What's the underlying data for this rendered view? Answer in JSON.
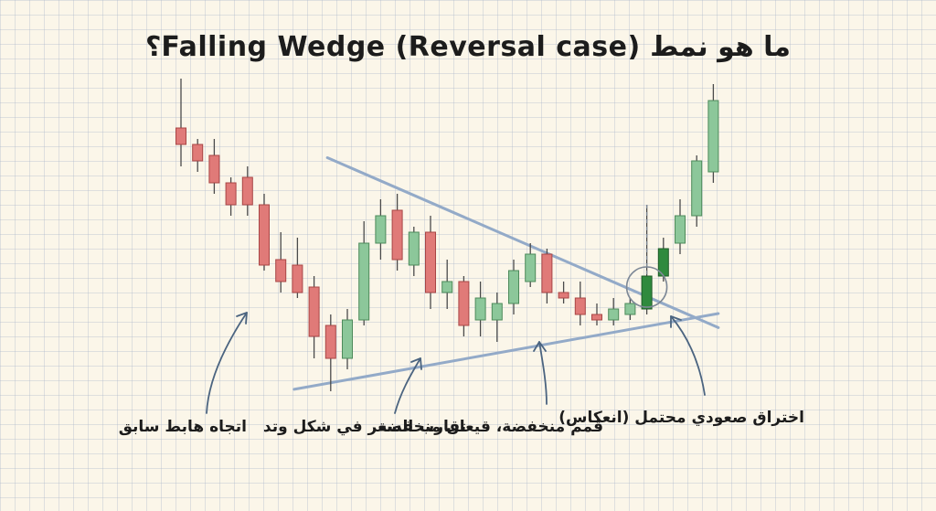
{
  "title": "ما هو نمط Falling Wedge (Reversal case)؟",
  "colors": {
    "bearish": "#e07a78",
    "bearish_border": "#a84545",
    "bullish_light": "#8cc79a",
    "bullish_light_border": "#4d8a5a",
    "bullish_strong": "#2f8a3e",
    "bullish_strong_border": "#1d5a27",
    "trendline": "#93aac8",
    "arrow": "#4b6480"
  },
  "annotations": {
    "prior_downtrend": "اتجاه هابط سابق",
    "converging": "تقارب السعر في شكل وتد",
    "lower_highs_lows": "قمم منخفضة، قيعان منخفضة",
    "breakout": "اختراق صعودي محتمل (انعكاس)"
  },
  "chart_data": {
    "type": "candlestick",
    "title": "ما هو نمط Falling Wedge (Reversal case)؟",
    "xlabel": "",
    "ylabel": "",
    "axes_visible": false,
    "grid": true,
    "series": [
      {
        "o": 90,
        "h": 99,
        "l": 83,
        "c": 87,
        "k": "bear"
      },
      {
        "o": 87,
        "h": 88,
        "l": 82,
        "c": 84,
        "k": "bear"
      },
      {
        "o": 85,
        "h": 88,
        "l": 78,
        "c": 80,
        "k": "bear"
      },
      {
        "o": 80,
        "h": 81,
        "l": 74,
        "c": 76,
        "k": "bear"
      },
      {
        "o": 81,
        "h": 83,
        "l": 74,
        "c": 76,
        "k": "bear"
      },
      {
        "o": 76,
        "h": 78,
        "l": 64,
        "c": 65,
        "k": "bear"
      },
      {
        "o": 66,
        "h": 71,
        "l": 60,
        "c": 62,
        "k": "bear"
      },
      {
        "o": 65,
        "h": 70,
        "l": 59,
        "c": 60,
        "k": "bear"
      },
      {
        "o": 61,
        "h": 63,
        "l": 48,
        "c": 52,
        "k": "bear"
      },
      {
        "o": 54,
        "h": 56,
        "l": 42,
        "c": 48,
        "k": "bear"
      },
      {
        "o": 48,
        "h": 57,
        "l": 46,
        "c": 55,
        "k": "bull"
      },
      {
        "o": 55,
        "h": 73,
        "l": 54,
        "c": 69,
        "k": "bull"
      },
      {
        "o": 69,
        "h": 77,
        "l": 66,
        "c": 74,
        "k": "bull"
      },
      {
        "o": 75,
        "h": 78,
        "l": 64,
        "c": 66,
        "k": "bear"
      },
      {
        "o": 65,
        "h": 72,
        "l": 63,
        "c": 71,
        "k": "bull"
      },
      {
        "o": 71,
        "h": 74,
        "l": 57,
        "c": 60,
        "k": "bear"
      },
      {
        "o": 60,
        "h": 66,
        "l": 57,
        "c": 62,
        "k": "bull"
      },
      {
        "o": 62,
        "h": 63,
        "l": 52,
        "c": 54,
        "k": "bear"
      },
      {
        "o": 55,
        "h": 62,
        "l": 52,
        "c": 59,
        "k": "bull"
      },
      {
        "o": 55,
        "h": 60,
        "l": 51,
        "c": 58,
        "k": "bull"
      },
      {
        "o": 58,
        "h": 66,
        "l": 56,
        "c": 64,
        "k": "bull"
      },
      {
        "o": 62,
        "h": 69,
        "l": 61,
        "c": 67,
        "k": "bull"
      },
      {
        "o": 67,
        "h": 68,
        "l": 58,
        "c": 60,
        "k": "bear"
      },
      {
        "o": 60,
        "h": 62,
        "l": 58,
        "c": 59,
        "k": "bear"
      },
      {
        "o": 59,
        "h": 62,
        "l": 54,
        "c": 56,
        "k": "bear"
      },
      {
        "o": 56,
        "h": 58,
        "l": 54,
        "c": 55,
        "k": "bear"
      },
      {
        "o": 55,
        "h": 59,
        "l": 54,
        "c": 57,
        "k": "bull"
      },
      {
        "o": 56,
        "h": 59,
        "l": 55,
        "c": 58,
        "k": "bull"
      },
      {
        "o": 57,
        "h": 76,
        "l": 56,
        "c": 63,
        "k": "bull_strong"
      },
      {
        "o": 63,
        "h": 70,
        "l": 62,
        "c": 68,
        "k": "bull_strong"
      },
      {
        "o": 69,
        "h": 77,
        "l": 67,
        "c": 74,
        "k": "bull"
      },
      {
        "o": 74,
        "h": 85,
        "l": 72,
        "c": 84,
        "k": "bull"
      },
      {
        "o": 82,
        "h": 98,
        "l": 80,
        "c": 95,
        "k": "bull"
      }
    ],
    "trendlines": [
      {
        "name": "upper",
        "from": {
          "i": 10,
          "v": 83
        },
        "to": {
          "i": 32,
          "v": 54
        }
      },
      {
        "name": "lower",
        "from": {
          "i": 8,
          "v": 43
        },
        "to": {
          "i": 32,
          "v": 56
        }
      }
    ],
    "breakout_index": 28,
    "ylim": [
      40,
      100
    ]
  }
}
